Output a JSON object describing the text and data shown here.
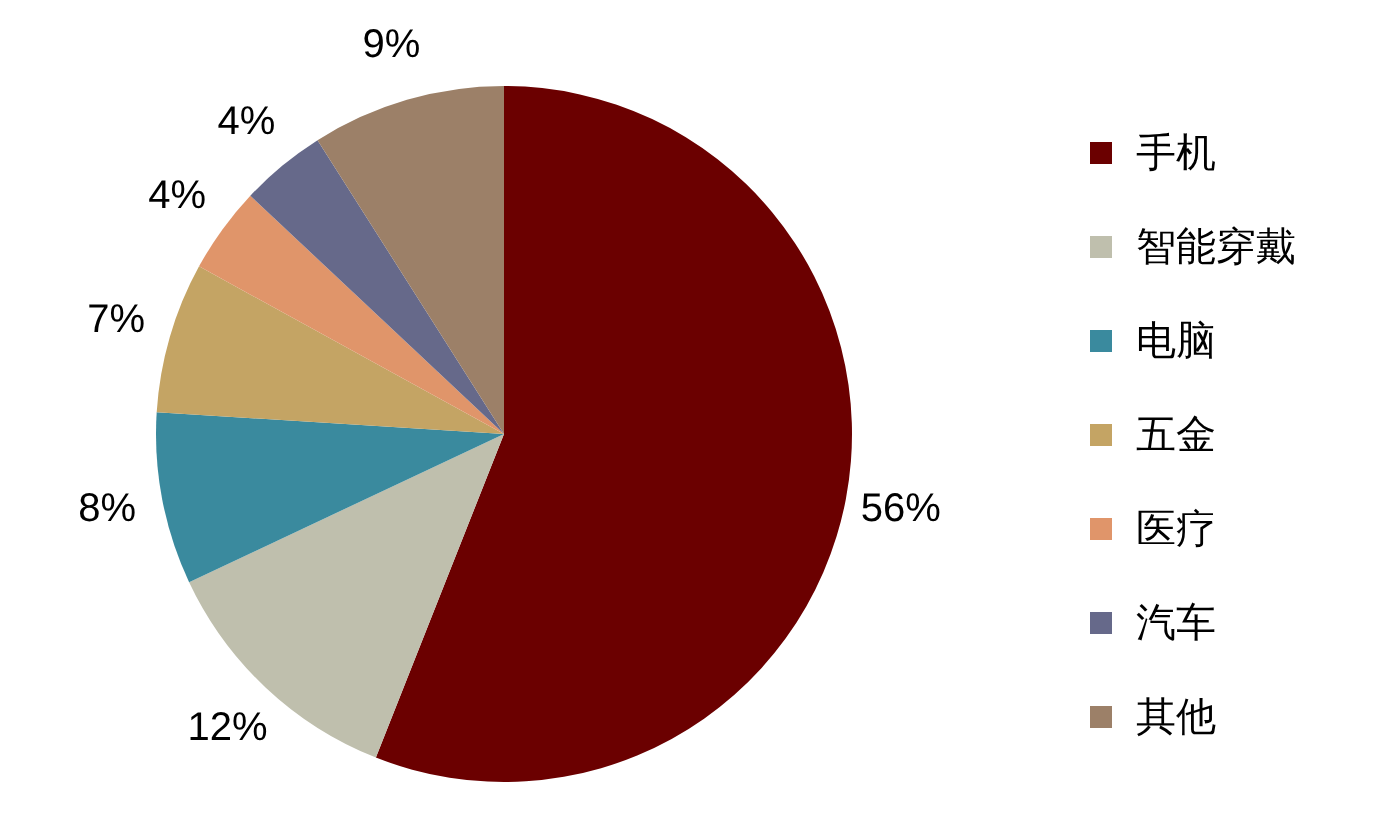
{
  "chart_data": {
    "type": "pie",
    "categories": [
      "手机",
      "智能穿戴",
      "电脑",
      "五金",
      "医疗",
      "汽车",
      "其他"
    ],
    "values": [
      56,
      12,
      8,
      7,
      4,
      4,
      9
    ],
    "colors": [
      "#6b0000",
      "#bfbfad",
      "#3a8a9e",
      "#c4a464",
      "#e0956a",
      "#66698a",
      "#9c8068"
    ],
    "value_labels": [
      "56%",
      "12%",
      "8%",
      "7%",
      "4%",
      "4%",
      "9%"
    ],
    "legend": "right"
  }
}
